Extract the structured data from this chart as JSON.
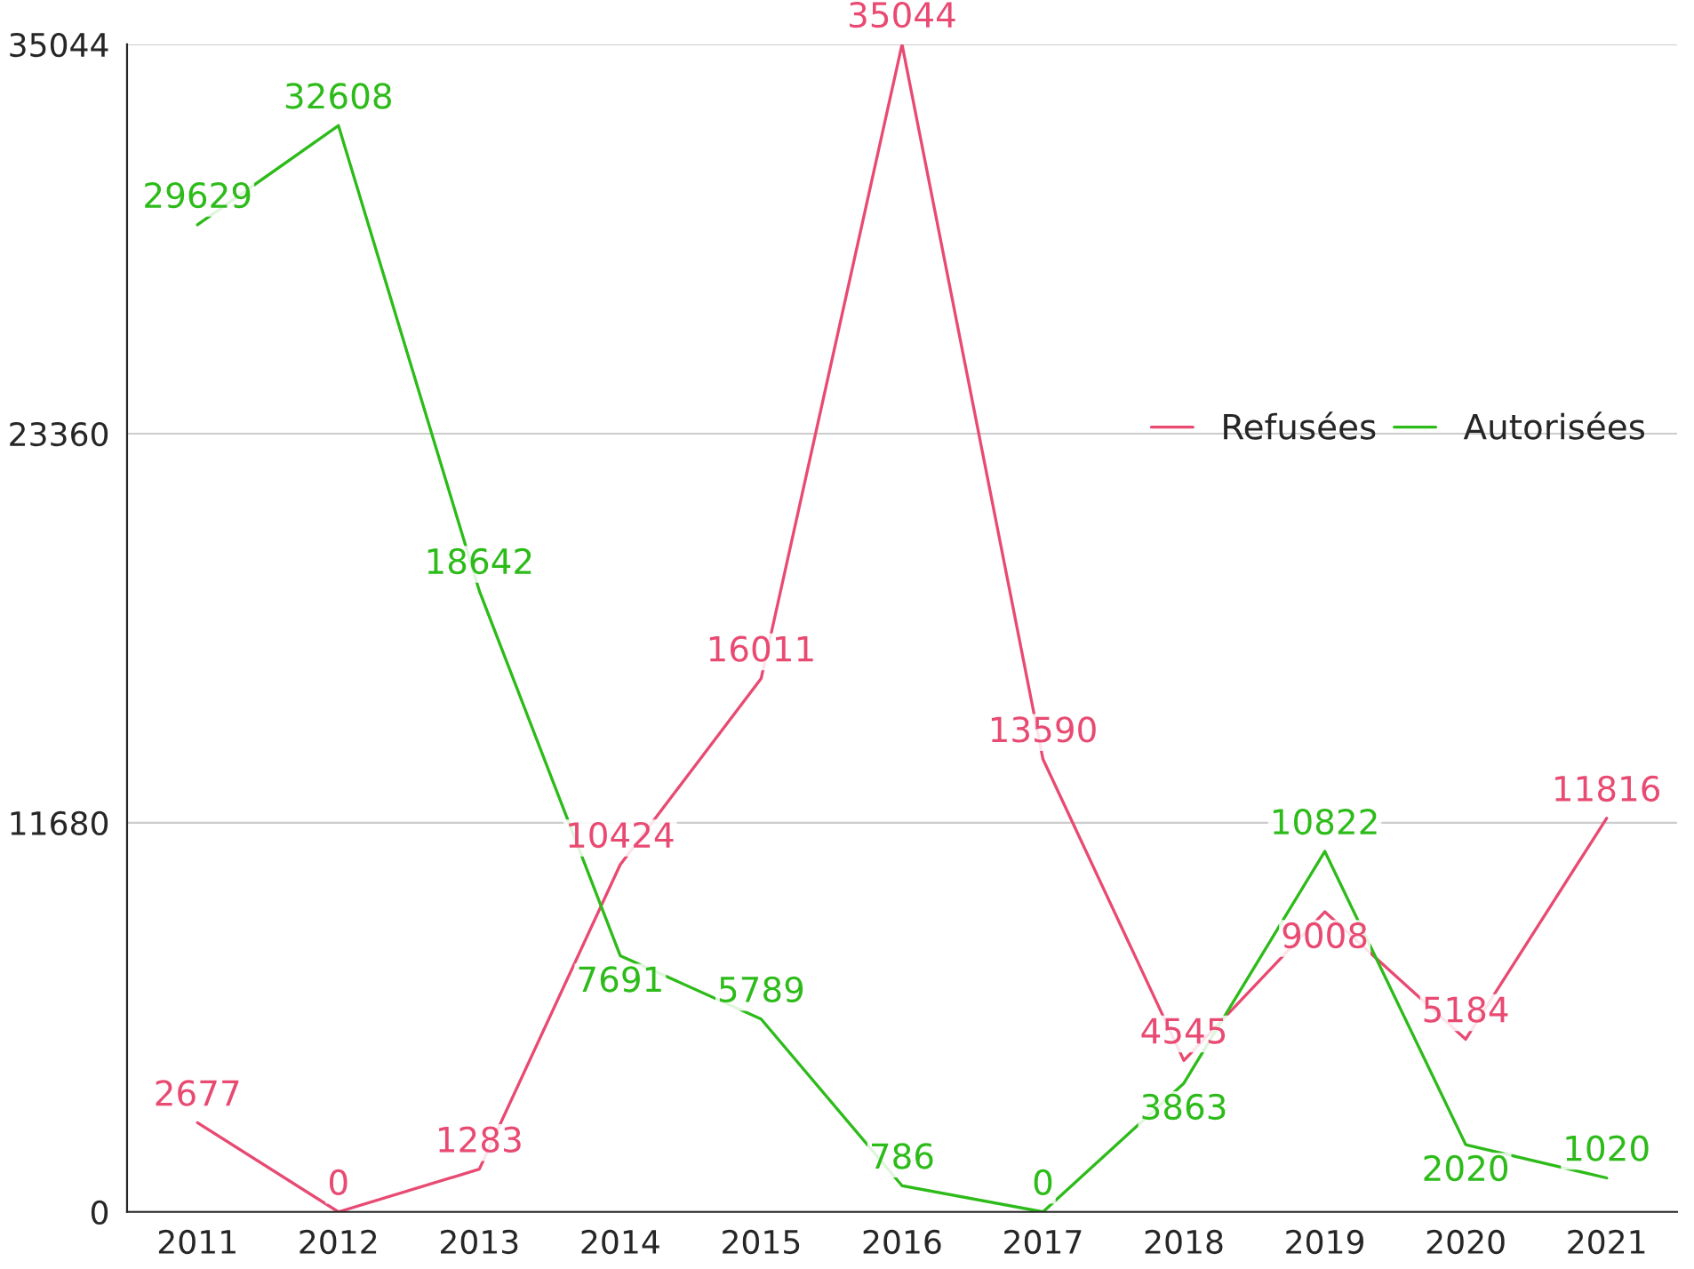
{
  "chart_data": {
    "type": "line",
    "categories": [
      "2011",
      "2012",
      "2013",
      "2014",
      "2015",
      "2016",
      "2017",
      "2018",
      "2019",
      "2020",
      "2021"
    ],
    "series": [
      {
        "name": "Refusées",
        "color": "#e84a72",
        "values": [
          2677,
          0,
          1283,
          10424,
          16011,
          35044,
          13590,
          4545,
          9008,
          5184,
          11816
        ]
      },
      {
        "name": "Autorisées",
        "color": "#2dbb1a",
        "values": [
          29629,
          32608,
          18642,
          7691,
          5789,
          786,
          0,
          3863,
          10822,
          2020,
          1020
        ]
      }
    ],
    "ylim": [
      0,
      35044
    ],
    "yticks": [
      0,
      11680,
      23360,
      35044
    ],
    "grid": "y",
    "legend": "right",
    "data_labels": true,
    "marker": "none",
    "line_style": "solid"
  }
}
